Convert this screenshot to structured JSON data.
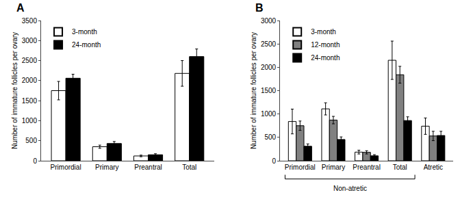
{
  "chart_data": [
    {
      "type": "bar",
      "title": "A",
      "categories": [
        "Primordial",
        "Primary",
        "Preantral",
        "Total"
      ],
      "series": [
        {
          "name": "3-month",
          "color": "#ffffff",
          "values": [
            1750,
            350,
            120,
            2180
          ],
          "errors": [
            230,
            40,
            20,
            320
          ]
        },
        {
          "name": "24-month",
          "color": "#000000",
          "values": [
            2060,
            430,
            150,
            2600
          ],
          "errors": [
            100,
            50,
            25,
            190
          ]
        }
      ],
      "ylabel": "Number of immature follicles per ovary",
      "ylim": [
        0,
        3500
      ],
      "yticks": [
        0,
        500,
        1000,
        1500,
        2000,
        2500,
        3000,
        3500
      ],
      "grid": false,
      "legend": "upper left"
    },
    {
      "type": "bar",
      "title": "B",
      "categories": [
        "Primordial",
        "Primary",
        "Preantral",
        "Total",
        "Atretic"
      ],
      "series": [
        {
          "name": "3-month",
          "color": "#ffffff",
          "values": [
            840,
            1110,
            185,
            2150,
            740
          ],
          "errors": [
            265,
            130,
            40,
            410,
            175
          ]
        },
        {
          "name": "12-month",
          "color": "#808080",
          "values": [
            750,
            870,
            180,
            1840,
            530
          ],
          "errors": [
            100,
            80,
            35,
            180,
            100
          ]
        },
        {
          "name": "24-month",
          "color": "#000000",
          "values": [
            310,
            455,
            105,
            860,
            540
          ],
          "errors": [
            50,
            55,
            25,
            80,
            90
          ]
        }
      ],
      "ylabel": "Number of immature follicles per ovary",
      "ylim": [
        0,
        3000
      ],
      "yticks": [
        0,
        500,
        1000,
        1500,
        2000,
        2500,
        3000
      ],
      "grid": false,
      "legend": "upper left",
      "annotations": [
        {
          "text": "Non-atretic",
          "categories": [
            "Primordial",
            "Primary",
            "Preantral",
            "Total"
          ]
        }
      ]
    }
  ]
}
